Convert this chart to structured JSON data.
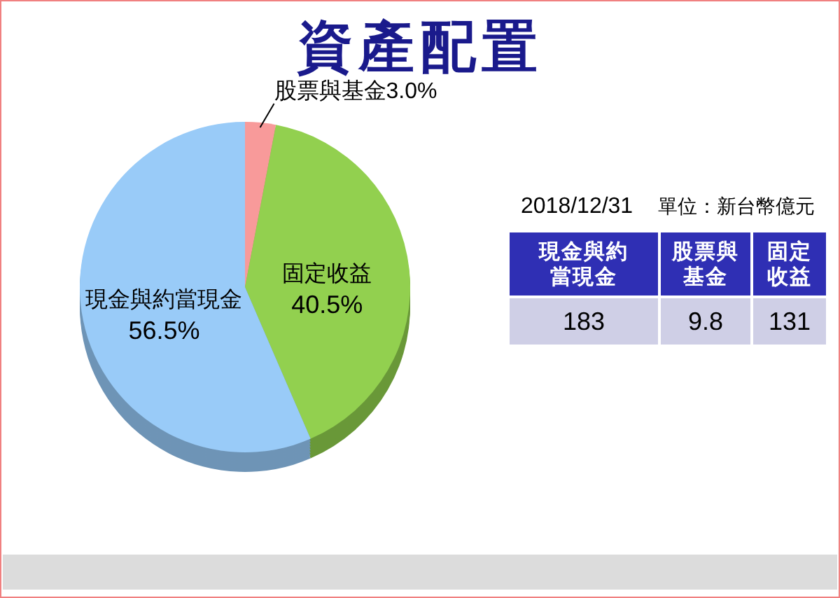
{
  "chart_data": [
    {
      "type": "pie",
      "title": "資產配置",
      "categories": [
        "股票與基金",
        "固定收益",
        "現金與約當現金"
      ],
      "values": [
        3.0,
        40.5,
        56.5
      ],
      "value_labels": [
        "3.0%",
        "40.5%",
        "56.5%"
      ],
      "colors": [
        "#f89a9a",
        "#92d050",
        "#99cbf8"
      ]
    },
    {
      "type": "other",
      "title": "2018/12/31",
      "subtitle": "單位：新台幣億元",
      "categories": [
        "現金與約當現金",
        "股票與基金",
        "固定收益"
      ],
      "values": [
        183,
        9.8,
        131
      ],
      "data_labels": true
    }
  ]
}
